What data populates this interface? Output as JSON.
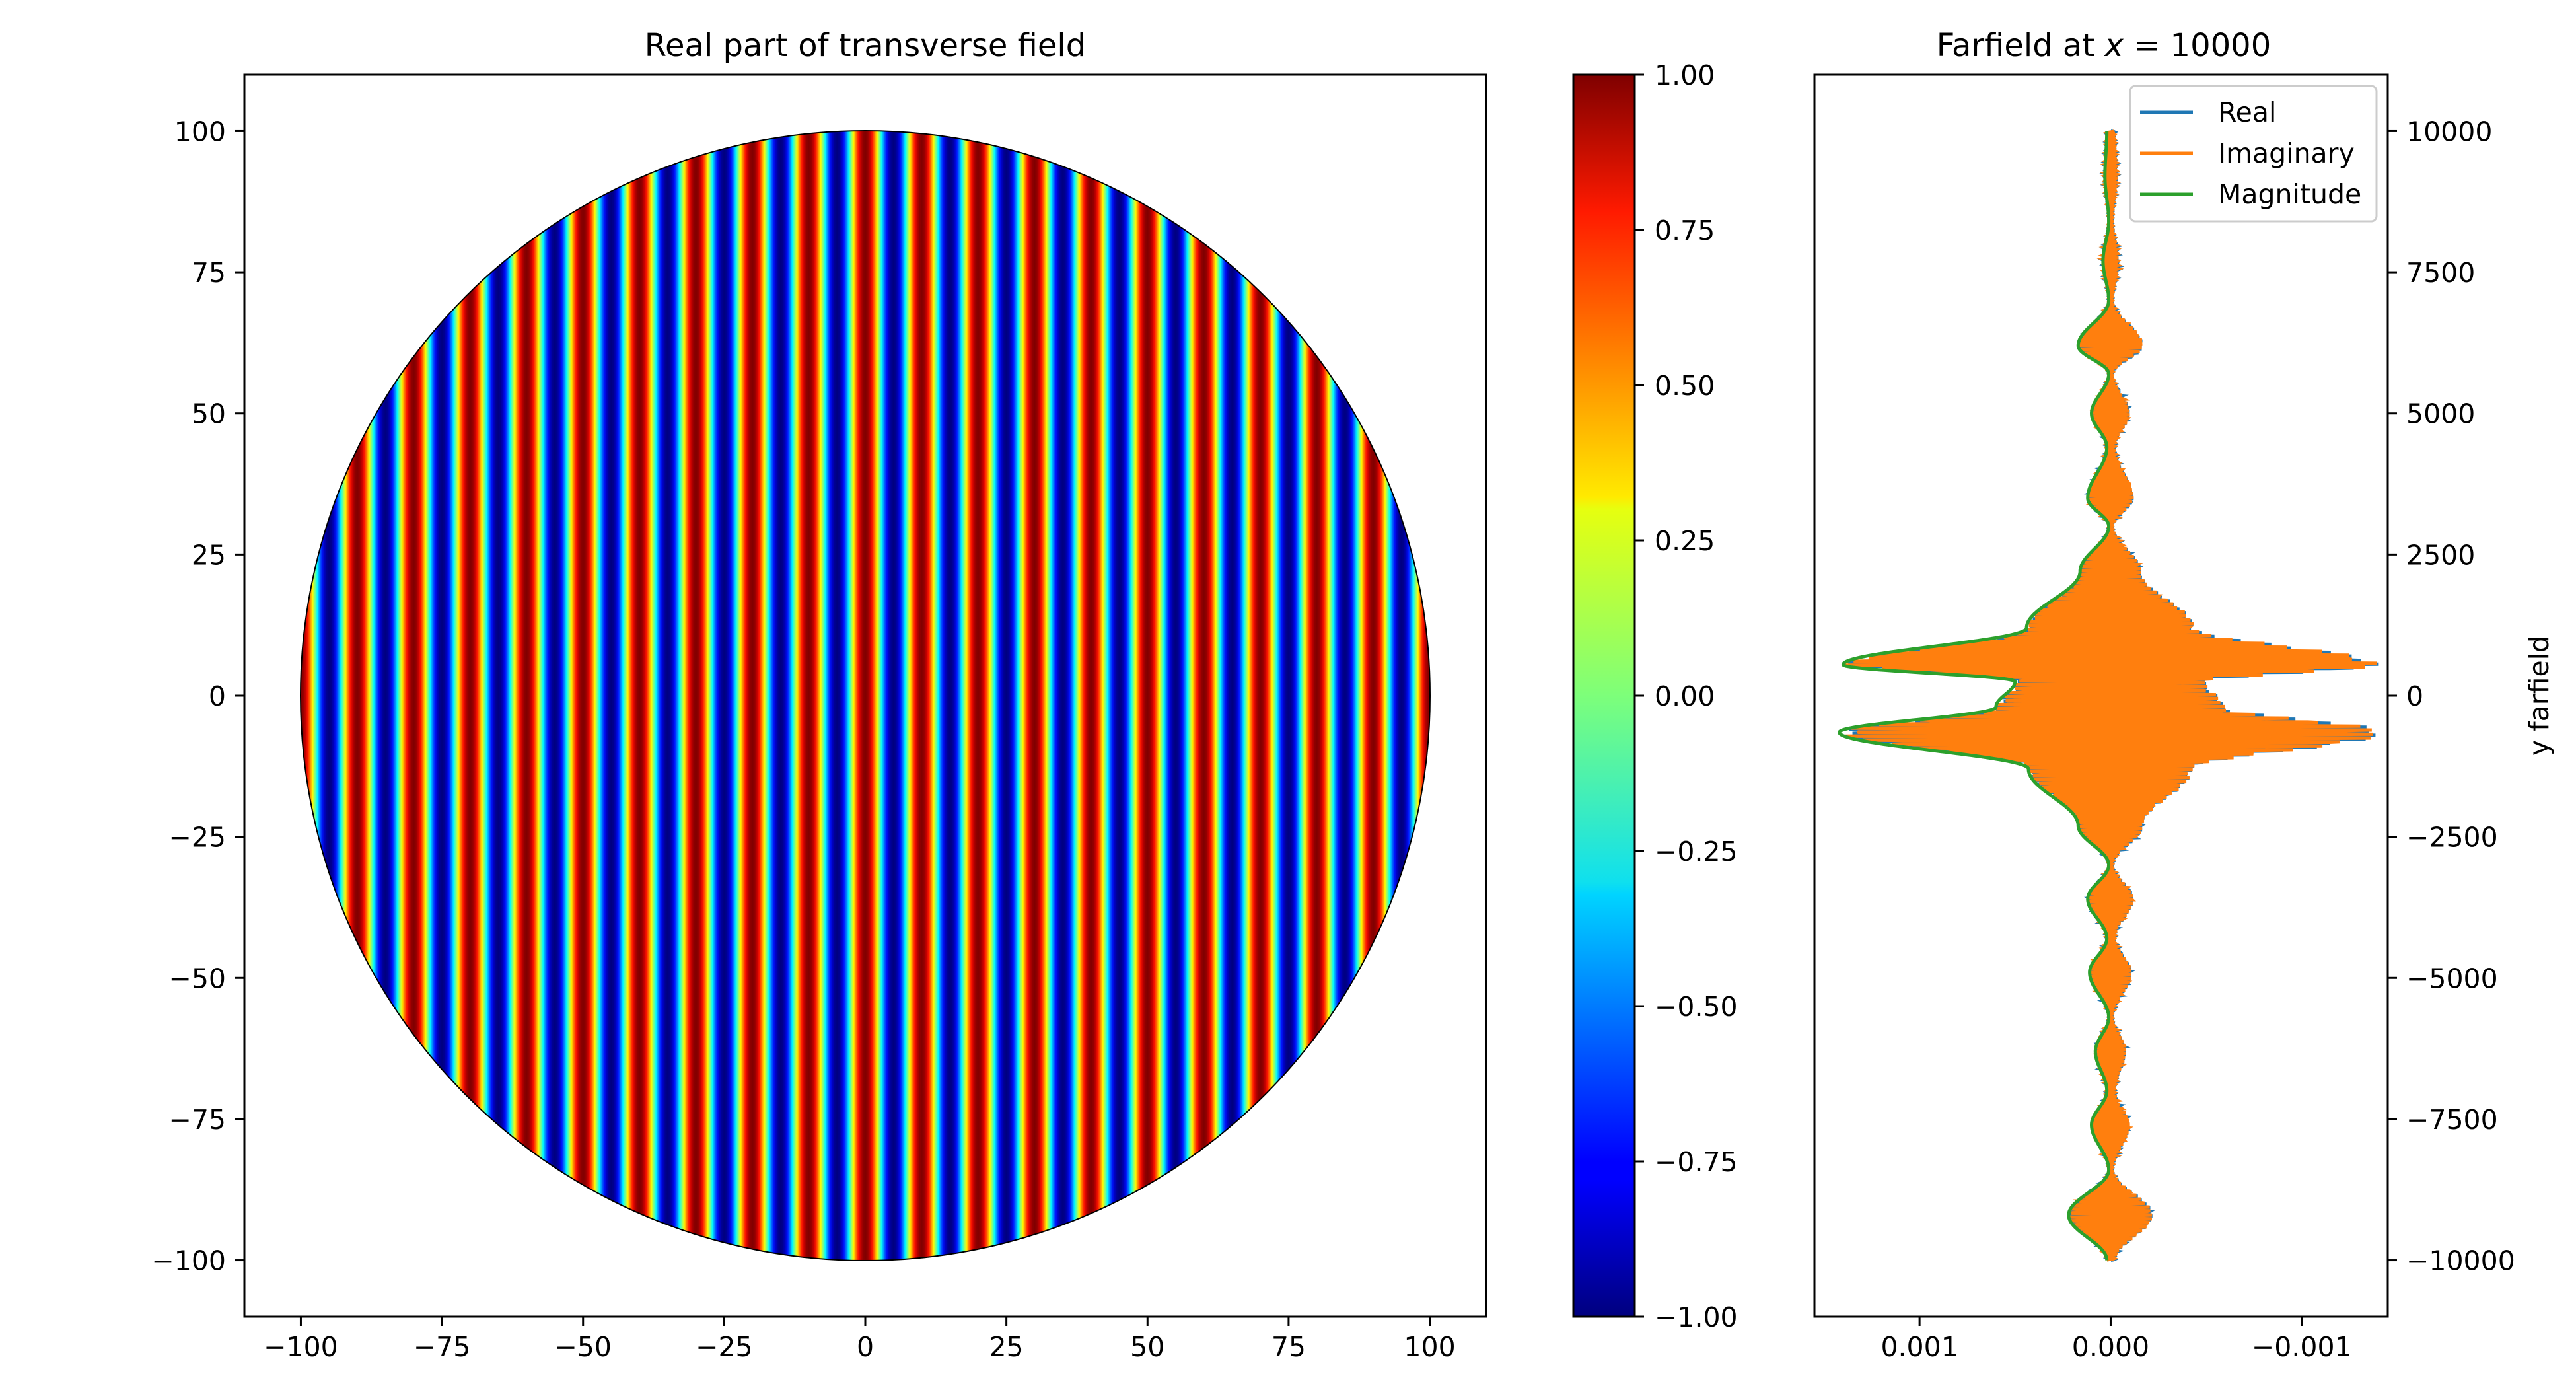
{
  "chart_data": [
    {
      "type": "heatmap",
      "title": "Real part of transverse field",
      "xlim": [
        -110,
        110
      ],
      "ylim": [
        -110,
        110
      ],
      "x_ticks": [
        "−100",
        "−75",
        "−50",
        "−25",
        "0",
        "25",
        "50",
        "75",
        "100"
      ],
      "x_tick_values": [
        -100,
        -75,
        -50,
        -25,
        0,
        25,
        50,
        75,
        100
      ],
      "y_ticks": [
        "100",
        "75",
        "50",
        "25",
        "0",
        "−25",
        "−50",
        "−75",
        "−100"
      ],
      "y_tick_values": [
        100,
        75,
        50,
        25,
        0,
        -25,
        -50,
        -75,
        -100
      ],
      "domain_radius": 100,
      "stripe_period": 10,
      "colormap": "jet",
      "colorbar": {
        "range": [
          -1.0,
          1.0
        ],
        "ticks": [
          "1.00",
          "0.75",
          "0.50",
          "0.25",
          "0.00",
          "−0.25",
          "−0.50",
          "−0.75",
          "−1.00"
        ],
        "tick_values": [
          1.0,
          0.75,
          0.5,
          0.25,
          0.0,
          -0.25,
          -0.5,
          -0.75,
          -1.0
        ]
      }
    },
    {
      "type": "line",
      "title_prefix": "Farfield at ",
      "title_var": "x",
      "title_value": " = 10000",
      "ylabel": "y farfield",
      "xlim": [
        0.00155,
        -0.00145
      ],
      "ylim": [
        -11000,
        11000
      ],
      "x_ticks": [
        "0.001",
        "0.000",
        "−0.001"
      ],
      "x_tick_values": [
        0.001,
        0.0,
        -0.001
      ],
      "y_ticks": [
        "10000",
        "7500",
        "5000",
        "2500",
        "0",
        "−2500",
        "−5000",
        "−7500",
        "−10000"
      ],
      "y_tick_values": [
        10000,
        7500,
        5000,
        2500,
        0,
        -2500,
        -5000,
        -7500,
        -10000
      ],
      "legend_position": "top-right",
      "series": [
        {
          "name": "Real",
          "color": "#1f77b4"
        },
        {
          "name": "Imaginary",
          "color": "#ff7f0e"
        },
        {
          "name": "Magnitude",
          "color": "#2ca02c"
        }
      ],
      "magnitude_envelope": [
        [
          -10000,
          2e-05
        ],
        [
          -9200,
          0.00022
        ],
        [
          -8400,
          1e-05
        ],
        [
          -7600,
          0.0001
        ],
        [
          -7000,
          2e-05
        ],
        [
          -6300,
          8e-05
        ],
        [
          -5700,
          1e-05
        ],
        [
          -4900,
          0.00011
        ],
        [
          -4300,
          2e-05
        ],
        [
          -3600,
          0.00012
        ],
        [
          -3000,
          1e-05
        ],
        [
          -2300,
          0.00017
        ],
        [
          -1300,
          0.00043
        ],
        [
          -650,
          0.00142
        ],
        [
          -200,
          0.0006
        ],
        [
          250,
          0.0005
        ],
        [
          550,
          0.0014
        ],
        [
          1200,
          0.00044
        ],
        [
          2200,
          0.00016
        ],
        [
          3000,
          1e-05
        ],
        [
          3500,
          0.00012
        ],
        [
          4400,
          2e-05
        ],
        [
          5000,
          0.0001
        ],
        [
          5700,
          1e-05
        ],
        [
          6200,
          0.00017
        ],
        [
          7000,
          1e-05
        ],
        [
          7700,
          4e-05
        ],
        [
          8400,
          1e-05
        ],
        [
          9200,
          3e-05
        ],
        [
          10000,
          2e-05
        ]
      ]
    }
  ]
}
